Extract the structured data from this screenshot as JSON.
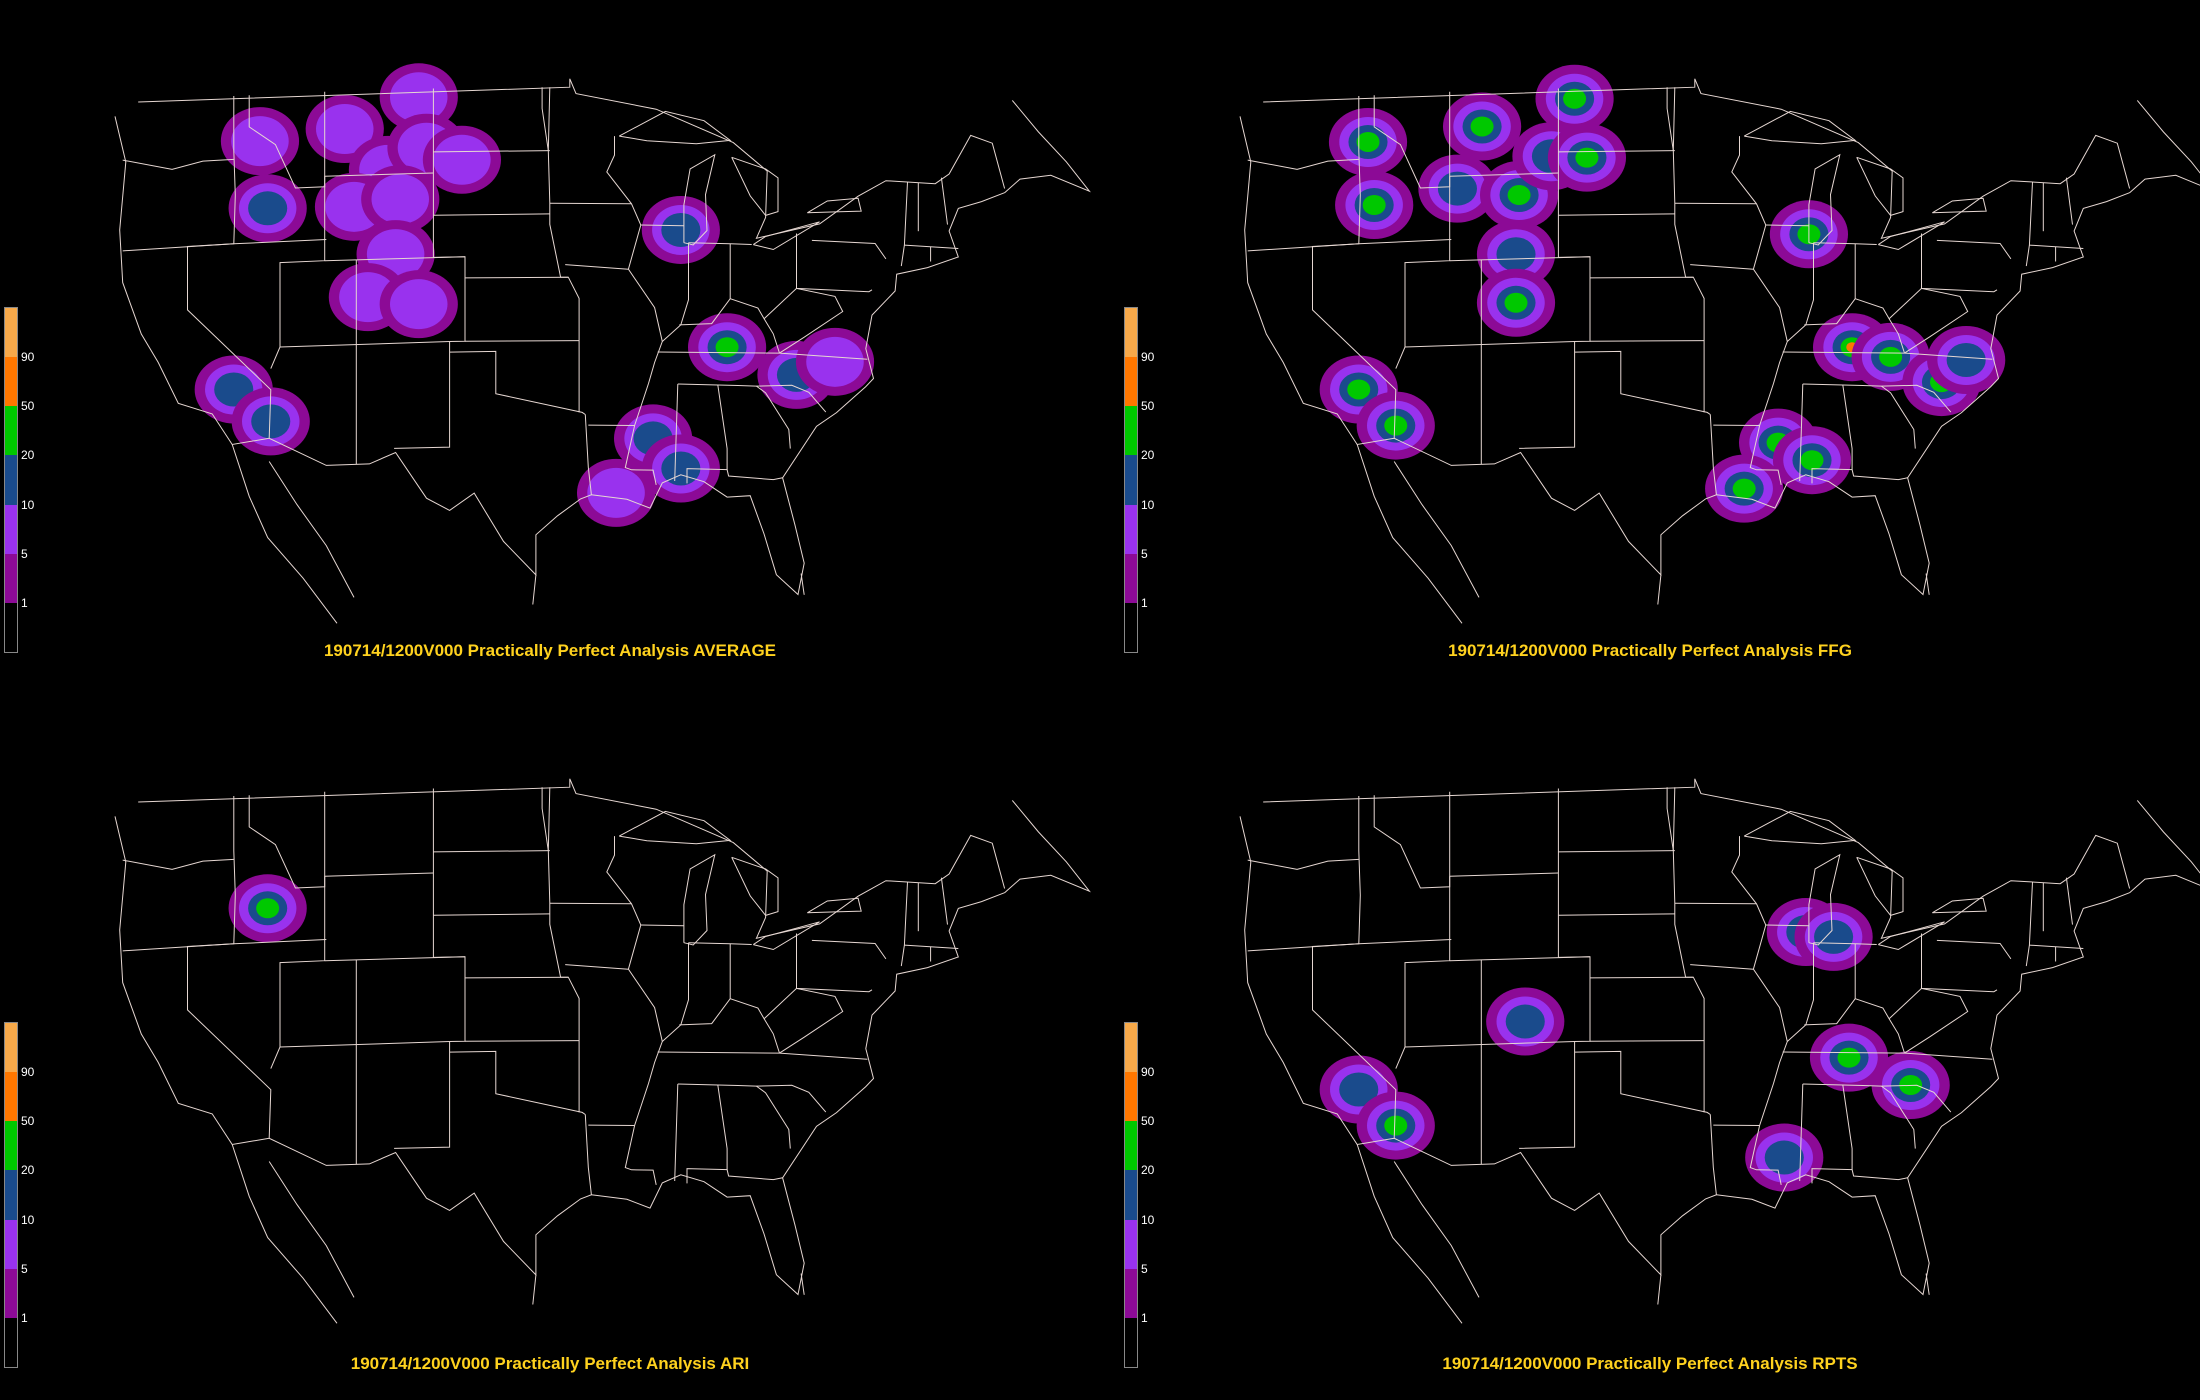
{
  "legend": {
    "labels": [
      "90",
      "50",
      "20",
      "10",
      "5",
      "1"
    ],
    "colors": [
      "#f7a94a",
      "#ff7700",
      "#00c800",
      "#1a4b8c",
      "#9932ee",
      "#8c0a96",
      "#000000"
    ]
  },
  "map": {
    "boundary_color": "#e6d7d2",
    "fill_levels": [
      "#8c0a96",
      "#9932ee",
      "#1a4b8c",
      "#00c800",
      "#ff7700"
    ]
  },
  "panels": [
    {
      "id": "average",
      "caption": "190714/1200V000 Practically Perfect Analysis AVERAGE",
      "blobs": [
        {
          "lon": -115.3,
          "lat": 46.8,
          "level": 2
        },
        {
          "lon": -114.8,
          "lat": 43.6,
          "level": 3
        },
        {
          "lon": -109.8,
          "lat": 47.2,
          "level": 2
        },
        {
          "lon": -105.0,
          "lat": 48.6,
          "level": 2
        },
        {
          "lon": -107.0,
          "lat": 45.2,
          "level": 2
        },
        {
          "lon": -104.5,
          "lat": 46.2,
          "level": 2
        },
        {
          "lon": -102.2,
          "lat": 45.6,
          "level": 2
        },
        {
          "lon": -109.2,
          "lat": 43.5,
          "level": 2
        },
        {
          "lon": -106.2,
          "lat": 43.8,
          "level": 2
        },
        {
          "lon": -106.5,
          "lat": 41.2,
          "level": 2
        },
        {
          "lon": -108.3,
          "lat": 39.2,
          "level": 2
        },
        {
          "lon": -105.0,
          "lat": 38.8,
          "level": 2
        },
        {
          "lon": -88.0,
          "lat": 42.3,
          "level": 3
        },
        {
          "lon": -85.0,
          "lat": 36.8,
          "level": 4
        },
        {
          "lon": -80.5,
          "lat": 35.6,
          "level": 3
        },
        {
          "lon": -78.0,
          "lat": 36.3,
          "level": 2
        },
        {
          "lon": -89.8,
          "lat": 32.4,
          "level": 3
        },
        {
          "lon": -88.0,
          "lat": 31.0,
          "level": 3
        },
        {
          "lon": -92.2,
          "lat": 29.8,
          "level": 2
        },
        {
          "lon": -117.0,
          "lat": 35.1,
          "level": 3
        },
        {
          "lon": -114.6,
          "lat": 33.5,
          "level": 3
        }
      ]
    },
    {
      "id": "ffg",
      "caption": "190714/1200V000 Practically Perfect Analysis FFG",
      "blobs": [
        {
          "lon": -116.4,
          "lat": 46.8,
          "level": 4
        },
        {
          "lon": -116.0,
          "lat": 43.8,
          "level": 4
        },
        {
          "lon": -109.0,
          "lat": 47.3,
          "level": 4
        },
        {
          "lon": -110.6,
          "lat": 44.4,
          "level": 3
        },
        {
          "lon": -106.6,
          "lat": 44.0,
          "level": 4
        },
        {
          "lon": -104.5,
          "lat": 45.8,
          "level": 3
        },
        {
          "lon": -103.0,
          "lat": 48.5,
          "level": 4
        },
        {
          "lon": -102.2,
          "lat": 45.7,
          "level": 4
        },
        {
          "lon": -106.8,
          "lat": 41.2,
          "level": 3
        },
        {
          "lon": -106.8,
          "lat": 38.9,
          "level": 4
        },
        {
          "lon": -87.8,
          "lat": 42.1,
          "level": 4
        },
        {
          "lon": -85.0,
          "lat": 36.8,
          "level": 5
        },
        {
          "lon": -82.5,
          "lat": 36.4,
          "level": 4
        },
        {
          "lon": -79.2,
          "lat": 35.3,
          "level": 4
        },
        {
          "lon": -77.6,
          "lat": 36.4,
          "level": 3
        },
        {
          "lon": -89.8,
          "lat": 32.2,
          "level": 4
        },
        {
          "lon": -87.6,
          "lat": 31.4,
          "level": 4
        },
        {
          "lon": -92.0,
          "lat": 30.0,
          "level": 4
        },
        {
          "lon": -117.0,
          "lat": 35.1,
          "level": 4
        },
        {
          "lon": -114.6,
          "lat": 33.3,
          "level": 4
        }
      ]
    },
    {
      "id": "ari",
      "caption": "190714/1200V000 Practically Perfect Analysis ARI",
      "blobs": [
        {
          "lon": -114.8,
          "lat": 43.6,
          "level": 4
        }
      ]
    },
    {
      "id": "rpts",
      "caption": "190714/1200V000 Practically Perfect Analysis RPTS",
      "blobs": [
        {
          "lon": -88.0,
          "lat": 42.2,
          "level": 3
        },
        {
          "lon": -86.2,
          "lat": 42.0,
          "level": 3
        },
        {
          "lon": -106.2,
          "lat": 38.0,
          "level": 3
        },
        {
          "lon": -85.2,
          "lat": 36.3,
          "level": 4
        },
        {
          "lon": -81.2,
          "lat": 35.1,
          "level": 4
        },
        {
          "lon": -89.4,
          "lat": 31.5,
          "level": 3
        },
        {
          "lon": -117.0,
          "lat": 35.1,
          "level": 3
        },
        {
          "lon": -114.6,
          "lat": 33.3,
          "level": 4
        }
      ]
    }
  ]
}
